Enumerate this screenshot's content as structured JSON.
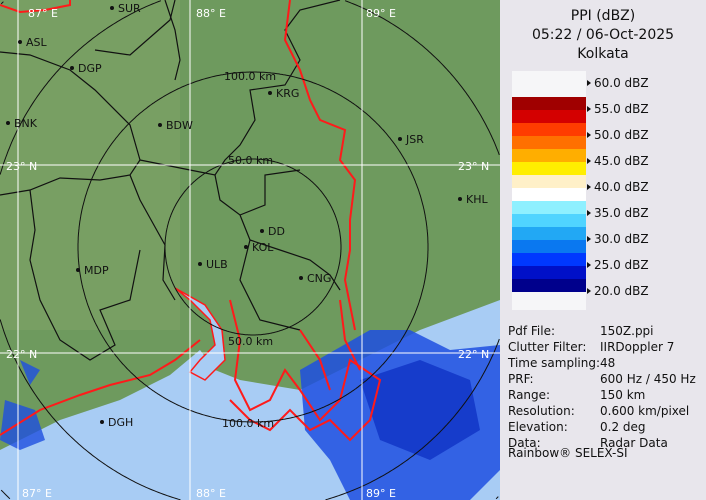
{
  "header": {
    "product": "PPI (dBZ)",
    "datetime": "05:22 / 06-Oct-2025",
    "station": "Kolkata"
  },
  "legend": {
    "labels": [
      "60.0 dBZ",
      "55.0 dBZ",
      "50.0 dBZ",
      "45.0 dBZ",
      "40.0 dBZ",
      "35.0 dBZ",
      "30.0 dBZ",
      "25.0 dBZ",
      "20.0 dBZ"
    ],
    "colors": [
      "#a00000",
      "#d40000",
      "#ff3c00",
      "#ff7000",
      "#ffae00",
      "#ffee00",
      "#fff0c8",
      "#ffffff",
      "#8ef0ff",
      "#50d4ff",
      "#22a8f4",
      "#0a78f0",
      "#0038ff",
      "#0010c8",
      "#00008c"
    ]
  },
  "info": [
    {
      "label": "Pdf File:",
      "value": "150Z.ppi"
    },
    {
      "label": "Clutter Filter:",
      "value": "IIRDoppler 7"
    },
    {
      "label": "Time sampling:",
      "value": "48"
    },
    {
      "label": "PRF:",
      "value": "600 Hz / 450 Hz"
    },
    {
      "label": "Range:",
      "value": "150 km"
    },
    {
      "label": "Resolution:",
      "value": "0.600 km/pixel"
    },
    {
      "label": "Elevation:",
      "value": "0.2 deg"
    },
    {
      "label": "Data:",
      "value": "Radar Data"
    }
  ],
  "credit": "Rainbow® SELEX-SI",
  "map": {
    "grid_labels": {
      "lon87": "87° E",
      "lon88": "88° E",
      "lon89": "89° E",
      "lat23": "23° N",
      "lat22": "22° N"
    },
    "range_labels": {
      "r50": "50.0 km",
      "r100": "100.0 km"
    },
    "cities": [
      "SUR",
      "ASL",
      "DGP",
      "BNK",
      "BDW",
      "KRG",
      "JSR",
      "KHL",
      "DD",
      "KOL",
      "ULB",
      "CNG",
      "MDP",
      "DGH"
    ],
    "colors": {
      "land": "#6e9a5e",
      "sea": "#a8ccf4",
      "border": "#ff1a1a",
      "district": "#111111",
      "grid": "#ffffff"
    }
  }
}
